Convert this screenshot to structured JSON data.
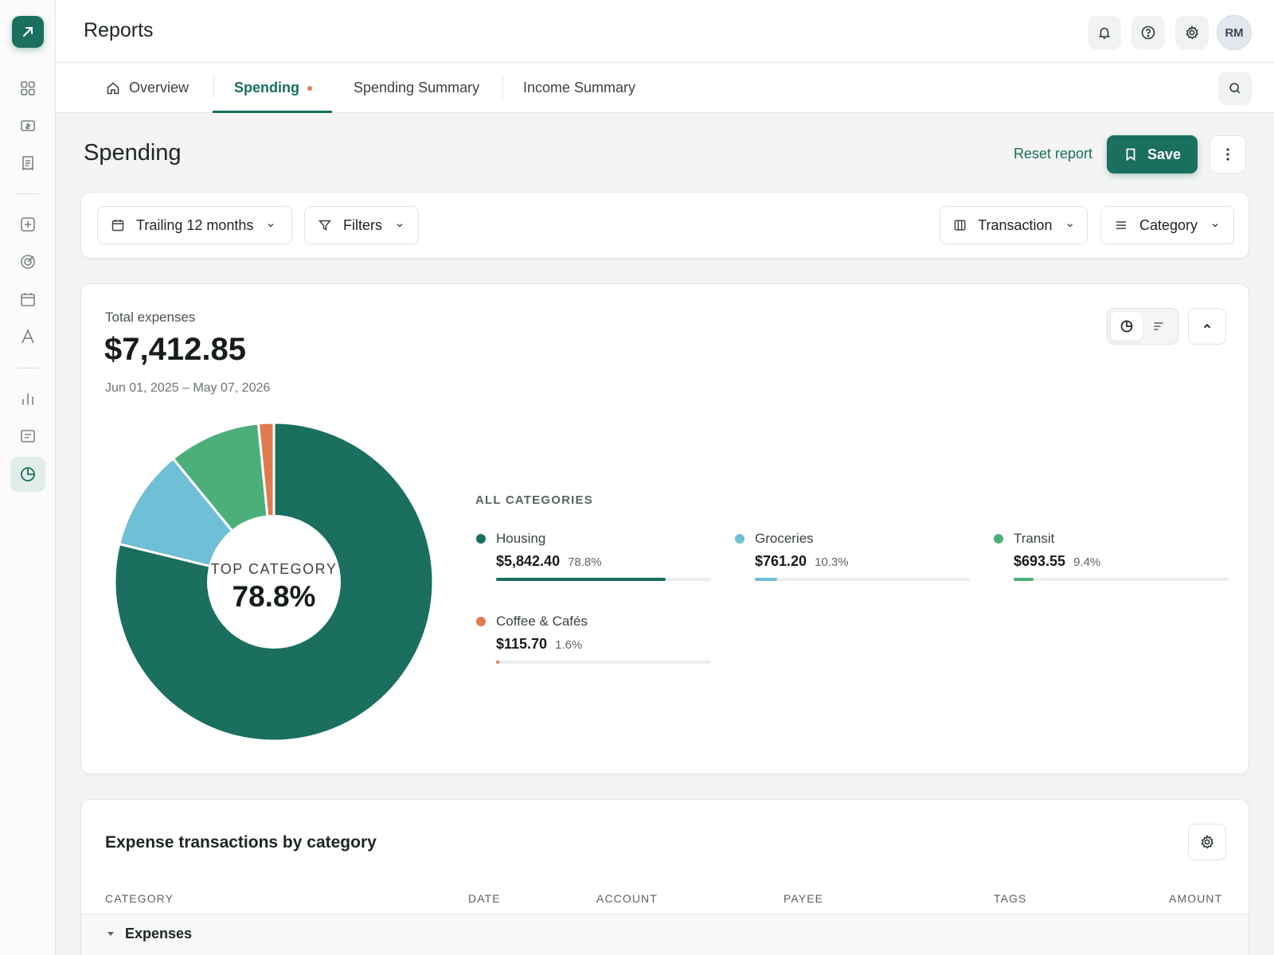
{
  "header": {
    "title": "Reports",
    "avatar_initials": "RM"
  },
  "tabs": [
    {
      "label": "Overview"
    },
    {
      "label": "Spending"
    },
    {
      "label": "Spending Summary"
    },
    {
      "label": "Income Summary"
    }
  ],
  "page": {
    "title": "Spending",
    "reset_label": "Reset report",
    "save_label": "Save"
  },
  "filters": {
    "date_range": "Trailing 12 months",
    "filters_label": "Filters",
    "group_by_left": "Transaction",
    "group_by_right": "Category"
  },
  "summary": {
    "total_label": "Total expenses",
    "total_value": "$7,412.85",
    "date_range": "Jun 01, 2025 – May 07, 2026",
    "center_label": "TOP CATEGORY",
    "center_value": "78.8%",
    "legend_title": "ALL CATEGORIES"
  },
  "chart_data": {
    "type": "pie",
    "style": "donut",
    "series": [
      {
        "name": "Housing",
        "amount": "$5,842.40",
        "percent_label": "78.8%",
        "value": 5842.4,
        "percent": 78.8,
        "color": "#1a6f5f"
      },
      {
        "name": "Groceries",
        "amount": "$761.20",
        "percent_label": "10.3%",
        "value": 761.2,
        "percent": 10.3,
        "color": "#6fbfd6"
      },
      {
        "name": "Transit",
        "amount": "$693.55",
        "percent_label": "9.4%",
        "value": 693.55,
        "percent": 9.4,
        "color": "#4caf7a"
      },
      {
        "name": "Coffee & Cafés",
        "amount": "$115.70",
        "percent_label": "1.6%",
        "value": 115.7,
        "percent": 1.6,
        "color": "#e07b50"
      }
    ]
  },
  "table": {
    "title": "Expense transactions by category",
    "columns": [
      "CATEGORY",
      "DATE",
      "ACCOUNT",
      "PAYEE",
      "TAGS",
      "AMOUNT"
    ],
    "group": "Expenses"
  },
  "colors": {
    "accent": "#1a6f5f",
    "indicator": "#e07b50"
  }
}
